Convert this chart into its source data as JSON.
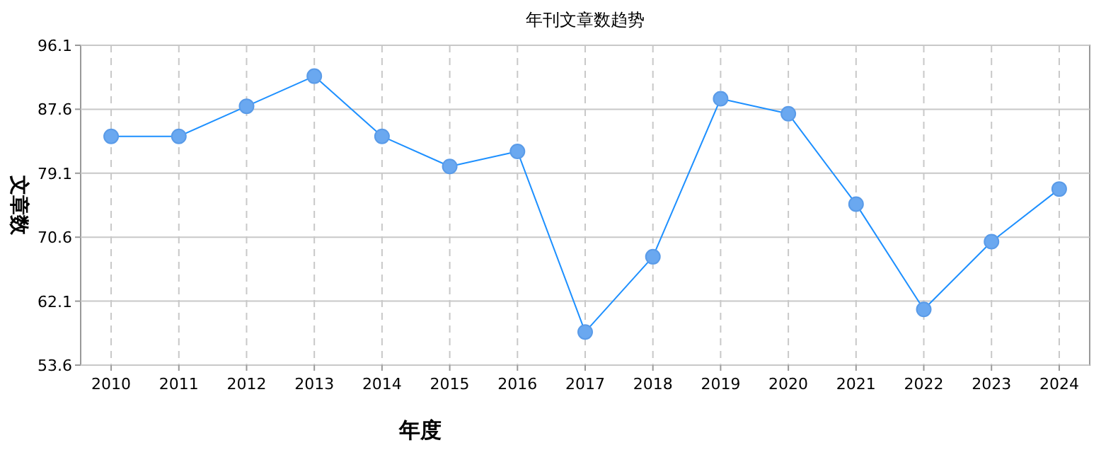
{
  "chart_data": {
    "type": "line",
    "title": "年刊文章数趋势",
    "xlabel": "年度",
    "ylabel": "文章数",
    "categories": [
      "2010",
      "2011",
      "2012",
      "2013",
      "2014",
      "2015",
      "2016",
      "2017",
      "2018",
      "2019",
      "2020",
      "2021",
      "2022",
      "2023",
      "2024"
    ],
    "series": [
      {
        "color": "#1e90ff",
        "values": [
          84,
          84,
          88,
          92,
          84,
          80,
          82,
          58,
          68,
          89,
          87,
          75,
          61,
          70,
          77
        ]
      }
    ],
    "ylim": [
      53.6,
      96.1
    ],
    "yticks": [
      53.6,
      62.1,
      70.6,
      79.1,
      87.6,
      96.1
    ],
    "grid": true,
    "marker": "circle",
    "line_style": "solid"
  }
}
